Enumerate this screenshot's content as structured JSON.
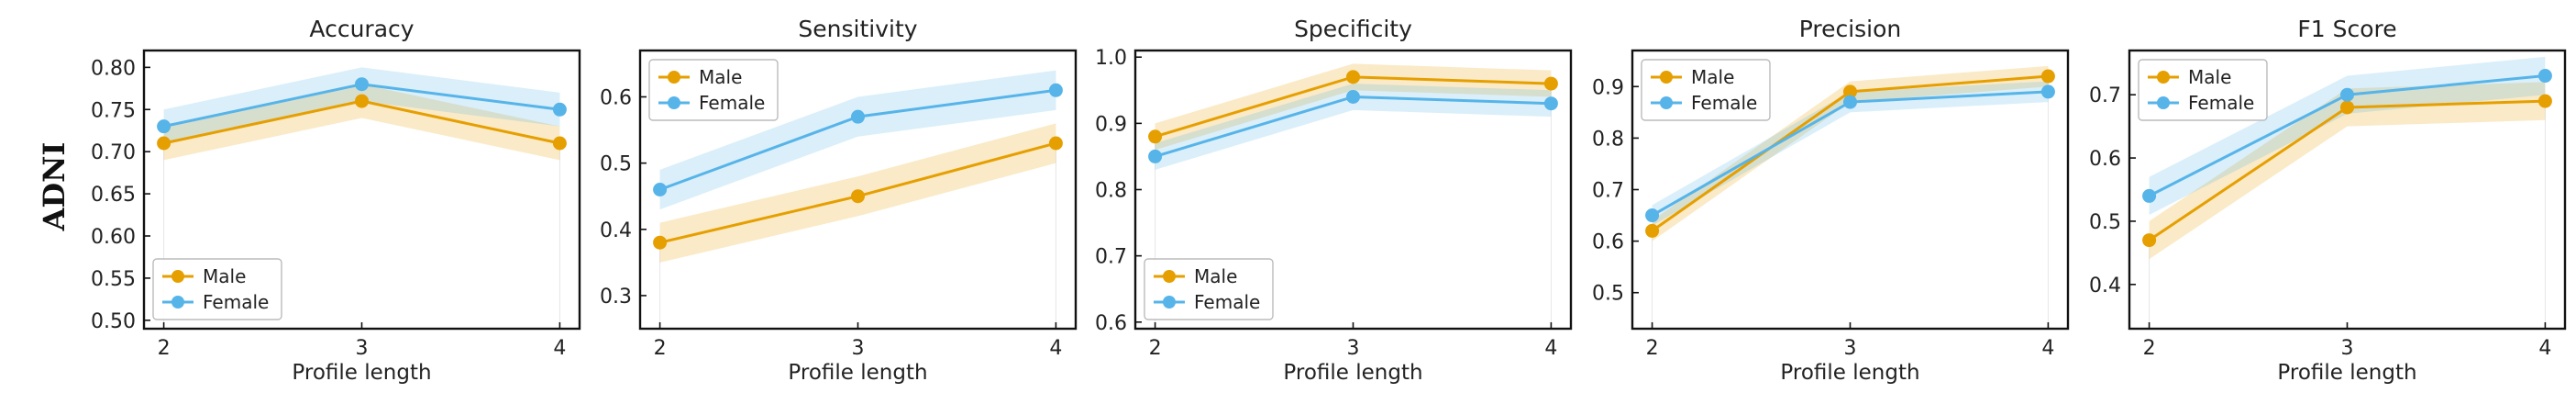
{
  "figure": {
    "row_label": "ADNI",
    "colors": {
      "male": "#E69F00",
      "female": "#56B4E9",
      "frame": "#111111",
      "legend_border": "#BBBBBB"
    }
  },
  "chart_data": [
    {
      "type": "line",
      "title": "Accuracy",
      "xlabel": "Profile length",
      "ylabel": "",
      "x": [
        2,
        3,
        4
      ],
      "xlim": [
        1.9,
        4.1
      ],
      "ylim": [
        0.49,
        0.82
      ],
      "yticks": [
        0.5,
        0.55,
        0.6,
        0.65,
        0.7,
        0.75,
        0.8
      ],
      "yticklabels": [
        "0.50",
        "0.55",
        "0.60",
        "0.65",
        "0.70",
        "0.75",
        "0.80"
      ],
      "legend_position": "lower-left",
      "series": [
        {
          "name": "Male",
          "values": [
            0.71,
            0.76,
            0.71
          ],
          "lower": [
            0.69,
            0.74,
            0.69
          ],
          "upper": [
            0.73,
            0.78,
            0.73
          ]
        },
        {
          "name": "Female",
          "values": [
            0.73,
            0.78,
            0.75
          ],
          "lower": [
            0.71,
            0.76,
            0.73
          ],
          "upper": [
            0.75,
            0.8,
            0.77
          ]
        }
      ]
    },
    {
      "type": "line",
      "title": "Sensitivity",
      "xlabel": "Profile length",
      "ylabel": "",
      "x": [
        2,
        3,
        4
      ],
      "xlim": [
        1.9,
        4.1
      ],
      "ylim": [
        0.25,
        0.67
      ],
      "yticks": [
        0.3,
        0.4,
        0.5,
        0.6
      ],
      "yticklabels": [
        "0.3",
        "0.4",
        "0.5",
        "0.6"
      ],
      "legend_position": "top-left",
      "series": [
        {
          "name": "Male",
          "values": [
            0.38,
            0.45,
            0.53
          ],
          "lower": [
            0.35,
            0.42,
            0.5
          ],
          "upper": [
            0.41,
            0.48,
            0.56
          ]
        },
        {
          "name": "Female",
          "values": [
            0.46,
            0.57,
            0.61
          ],
          "lower": [
            0.43,
            0.54,
            0.58
          ],
          "upper": [
            0.49,
            0.6,
            0.64
          ]
        }
      ]
    },
    {
      "type": "line",
      "title": "Specificity",
      "xlabel": "Profile length",
      "ylabel": "",
      "x": [
        2,
        3,
        4
      ],
      "xlim": [
        1.9,
        4.1
      ],
      "ylim": [
        0.59,
        1.01
      ],
      "yticks": [
        0.6,
        0.7,
        0.8,
        0.9,
        1.0
      ],
      "yticklabels": [
        "0.6",
        "0.7",
        "0.8",
        "0.9",
        "1.0"
      ],
      "legend_position": "lower-left",
      "series": [
        {
          "name": "Male",
          "values": [
            0.88,
            0.97,
            0.96
          ],
          "lower": [
            0.86,
            0.95,
            0.94
          ],
          "upper": [
            0.9,
            0.99,
            0.98
          ]
        },
        {
          "name": "Female",
          "values": [
            0.85,
            0.94,
            0.93
          ],
          "lower": [
            0.83,
            0.92,
            0.91
          ],
          "upper": [
            0.87,
            0.96,
            0.95
          ]
        }
      ]
    },
    {
      "type": "line",
      "title": "Precision",
      "xlabel": "Profile length",
      "ylabel": "",
      "x": [
        2,
        3,
        4
      ],
      "xlim": [
        1.9,
        4.1
      ],
      "ylim": [
        0.43,
        0.97
      ],
      "yticks": [
        0.5,
        0.6,
        0.7,
        0.8,
        0.9
      ],
      "yticklabels": [
        "0.5",
        "0.6",
        "0.7",
        "0.8",
        "0.9"
      ],
      "legend_position": "top-left",
      "series": [
        {
          "name": "Male",
          "values": [
            0.62,
            0.89,
            0.92
          ],
          "lower": [
            0.6,
            0.87,
            0.9
          ],
          "upper": [
            0.64,
            0.91,
            0.94
          ]
        },
        {
          "name": "Female",
          "values": [
            0.65,
            0.87,
            0.89
          ],
          "lower": [
            0.63,
            0.85,
            0.87
          ],
          "upper": [
            0.67,
            0.89,
            0.91
          ]
        }
      ]
    },
    {
      "type": "line",
      "title": "F1 Score",
      "xlabel": "Profile length",
      "ylabel": "",
      "x": [
        2,
        3,
        4
      ],
      "xlim": [
        1.9,
        4.1
      ],
      "ylim": [
        0.33,
        0.77
      ],
      "yticks": [
        0.4,
        0.5,
        0.6,
        0.7
      ],
      "yticklabels": [
        "0.4",
        "0.5",
        "0.6",
        "0.7"
      ],
      "legend_position": "top-left",
      "series": [
        {
          "name": "Male",
          "values": [
            0.47,
            0.68,
            0.69
          ],
          "lower": [
            0.44,
            0.65,
            0.66
          ],
          "upper": [
            0.5,
            0.71,
            0.72
          ]
        },
        {
          "name": "Female",
          "values": [
            0.54,
            0.7,
            0.73
          ],
          "lower": [
            0.51,
            0.67,
            0.7
          ],
          "upper": [
            0.57,
            0.73,
            0.76
          ]
        }
      ]
    }
  ]
}
